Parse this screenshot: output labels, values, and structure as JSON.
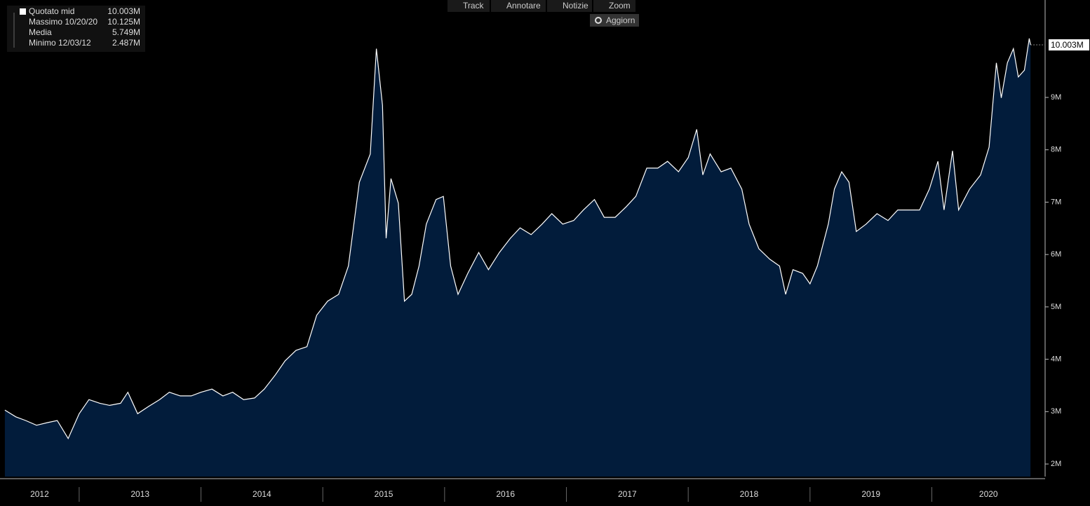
{
  "chart_data": {
    "type": "area",
    "toolbar": [
      "Track",
      "Annotare",
      "Notizie",
      "Zoom",
      "Aggiorn"
    ],
    "legend": [
      {
        "name": "Quotato mid",
        "value": "10.003M"
      },
      {
        "name": "Massimo 10/20/20",
        "value": "10.125M"
      },
      {
        "name": "Media",
        "value": "5.749M"
      },
      {
        "name": "Minimo 12/03/12",
        "value": "2.487M"
      }
    ],
    "last_value_label": "10.003M",
    "series": [
      {
        "name": "Quotato mid",
        "color": "#ffffff",
        "fill": "#021c3b",
        "x": [
          2012.39,
          2012.48,
          2012.56,
          2012.65,
          2012.74,
          2012.82,
          2012.91,
          2013.0,
          2013.08,
          2013.17,
          2013.25,
          2013.34,
          2013.4,
          2013.48,
          2013.57,
          2013.66,
          2013.74,
          2013.83,
          2013.92,
          2014.0,
          2014.09,
          2014.18,
          2014.26,
          2014.35,
          2014.44,
          2014.52,
          2014.61,
          2014.69,
          2014.78,
          2014.87,
          2014.95,
          2015.04,
          2015.13,
          2015.21,
          2015.3,
          2015.39,
          2015.44,
          2015.49,
          2015.52,
          2015.56,
          2015.62,
          2015.67,
          2015.73,
          2015.79,
          2015.85,
          2015.93,
          2015.99,
          2016.05,
          2016.11,
          2016.19,
          2016.28,
          2016.36,
          2016.45,
          2016.54,
          2016.62,
          2016.71,
          2016.8,
          2016.88,
          2016.97,
          2017.06,
          2017.14,
          2017.23,
          2017.31,
          2017.4,
          2017.49,
          2017.57,
          2017.66,
          2017.75,
          2017.83,
          2017.92,
          2018.0,
          2018.07,
          2018.12,
          2018.18,
          2018.27,
          2018.35,
          2018.44,
          2018.5,
          2018.58,
          2018.67,
          2018.75,
          2018.8,
          2018.86,
          2018.94,
          2019.0,
          2019.06,
          2019.15,
          2019.2,
          2019.26,
          2019.32,
          2019.38,
          2019.46,
          2019.55,
          2019.64,
          2019.72,
          2019.81,
          2019.9,
          2019.98,
          2020.05,
          2020.1,
          2020.17,
          2020.22,
          2020.31,
          2020.4,
          2020.47,
          2020.53,
          2020.57,
          2020.62,
          2020.67,
          2020.71,
          2020.76,
          2020.8,
          2020.81
        ],
        "values": [
          3.03,
          2.9,
          2.83,
          2.74,
          2.79,
          2.83,
          2.487,
          2.96,
          3.23,
          3.16,
          3.12,
          3.16,
          3.37,
          2.96,
          3.1,
          3.23,
          3.37,
          3.3,
          3.3,
          3.37,
          3.43,
          3.3,
          3.37,
          3.23,
          3.26,
          3.43,
          3.7,
          3.97,
          4.17,
          4.24,
          4.84,
          5.11,
          5.24,
          5.78,
          7.38,
          7.92,
          9.93,
          8.85,
          6.31,
          7.45,
          6.98,
          5.11,
          5.24,
          5.78,
          6.58,
          7.05,
          7.11,
          5.78,
          5.24,
          5.64,
          6.04,
          5.71,
          6.04,
          6.31,
          6.51,
          6.38,
          6.58,
          6.78,
          6.58,
          6.65,
          6.85,
          7.05,
          6.71,
          6.71,
          6.91,
          7.11,
          7.65,
          7.65,
          7.78,
          7.58,
          7.85,
          8.39,
          7.52,
          7.92,
          7.58,
          7.65,
          7.25,
          6.58,
          6.11,
          5.91,
          5.78,
          5.24,
          5.71,
          5.64,
          5.44,
          5.78,
          6.58,
          7.25,
          7.58,
          7.38,
          6.44,
          6.58,
          6.78,
          6.65,
          6.85,
          6.85,
          6.85,
          7.25,
          7.78,
          6.85,
          7.98,
          6.85,
          7.25,
          7.52,
          8.05,
          9.66,
          8.99,
          9.66,
          9.93,
          9.39,
          9.52,
          10.125,
          10.003
        ]
      }
    ],
    "xlim": [
      2012.35,
      2020.93
    ],
    "xticks": [
      2012,
      2013,
      2014,
      2015,
      2016,
      2017,
      2018,
      2019,
      2020
    ],
    "ylim": [
      1.76,
      10.86
    ],
    "yticks": [
      {
        "value": 2,
        "label": "2M"
      },
      {
        "value": 3,
        "label": "3M"
      },
      {
        "value": 4,
        "label": "4M"
      },
      {
        "value": 5,
        "label": "5M"
      },
      {
        "value": 6,
        "label": "6M"
      },
      {
        "value": 7,
        "label": "7M"
      },
      {
        "value": 8,
        "label": "8M"
      },
      {
        "value": 9,
        "label": "9M"
      }
    ],
    "grid": false
  }
}
